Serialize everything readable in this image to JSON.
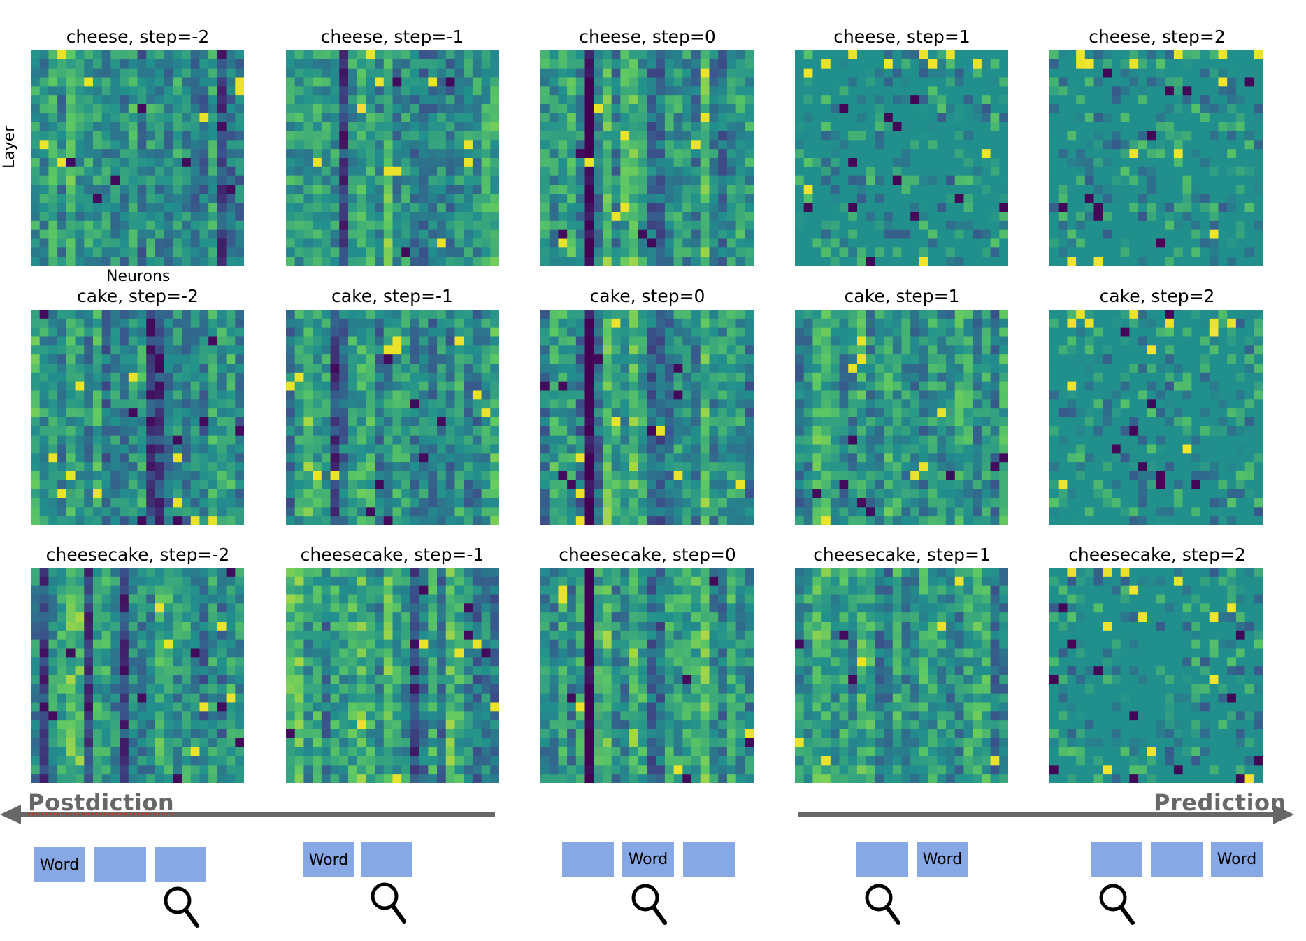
{
  "panels": [
    {
      "title": "cheese, step=-2",
      "word": "cheese",
      "step": -2
    },
    {
      "title": "cheese, step=-1",
      "word": "cheese",
      "step": -1
    },
    {
      "title": "cheese, step=0",
      "word": "cheese",
      "step": 0
    },
    {
      "title": "cheese, step=1",
      "word": "cheese",
      "step": 1
    },
    {
      "title": "cheese, step=2",
      "word": "cheese",
      "step": 2
    },
    {
      "title": "cake, step=-2",
      "word": "cake",
      "step": -2
    },
    {
      "title": "cake, step=-1",
      "word": "cake",
      "step": -1
    },
    {
      "title": "cake, step=0",
      "word": "cake",
      "step": 0
    },
    {
      "title": "cake, step=1",
      "word": "cake",
      "step": 1
    },
    {
      "title": "cake, step=2",
      "word": "cake",
      "step": 2
    },
    {
      "title": "cheesecake, step=-2",
      "word": "cheesecake",
      "step": -2
    },
    {
      "title": "cheesecake, step=-1",
      "word": "cheesecake",
      "step": -1
    },
    {
      "title": "cheesecake, step=0",
      "word": "cheesecake",
      "step": 0
    },
    {
      "title": "cheesecake, step=1",
      "word": "cheesecake",
      "step": 1
    },
    {
      "title": "cheesecake, step=2",
      "word": "cheesecake",
      "step": 2
    }
  ],
  "axes": {
    "y_label": "Layer",
    "x_label": "Neurons"
  },
  "arrows": {
    "left_label": "Postdiction",
    "right_label": "Prediction"
  },
  "token_word": "Word",
  "token_groups": [
    {
      "step": -2,
      "tokens": [
        "Word",
        "",
        ""
      ],
      "magnifier_index": 2
    },
    {
      "step": -1,
      "tokens": [
        "Word",
        ""
      ],
      "magnifier_index": 1
    },
    {
      "step": 0,
      "tokens": [
        "",
        "Word",
        ""
      ],
      "magnifier_index": 1
    },
    {
      "step": 1,
      "tokens": [
        "",
        "Word"
      ],
      "magnifier_index": 0
    },
    {
      "step": 2,
      "tokens": [
        "",
        "",
        "Word"
      ],
      "magnifier_index": 0
    }
  ],
  "colors": {
    "colormap": "viridis",
    "token_fill": "#86a8e4",
    "arrow": "#676767"
  }
}
